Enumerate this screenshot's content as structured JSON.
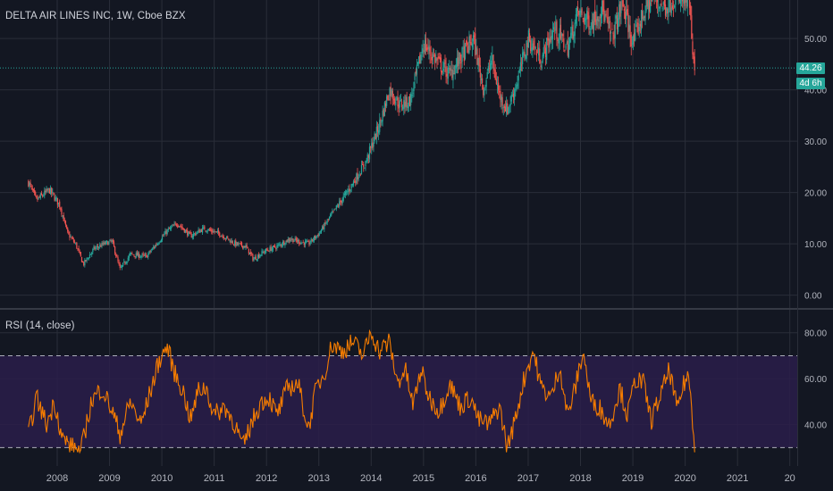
{
  "price_chart": {
    "title": "DELTA AIR LINES INC, 1W, Cboe BZX",
    "last_price_label": "44.26",
    "countdown_label": "4d 6h",
    "y_ticks": [
      "0.00",
      "10.00",
      "20.00",
      "30.00",
      "40.00",
      "50.00"
    ]
  },
  "rsi_chart": {
    "title": "RSI (14, close)",
    "y_ticks": [
      "40.00",
      "60.00",
      "80.00"
    ]
  },
  "x_ticks": [
    "2008",
    "2009",
    "2010",
    "2011",
    "2012",
    "2013",
    "2014",
    "2015",
    "2016",
    "2017",
    "2018",
    "2019",
    "2020",
    "2021",
    "20"
  ],
  "colors": {
    "background": "#131722",
    "grid": "#2a2e39",
    "up_candle": "#26a69a",
    "down_candle": "#ef5350",
    "rsi_line": "#f57c00",
    "rsi_band": "#2a1d4a",
    "price_line": "#26a69a"
  },
  "chart_data": [
    {
      "type": "candlestick",
      "title": "DELTA AIR LINES INC, 1W, Cboe BZX",
      "x_range": [
        2007.45,
        2020.18
      ],
      "ylim": [
        -2.5,
        57.5
      ],
      "last_price": 44.26,
      "anchors": [
        [
          2007.45,
          22.0
        ],
        [
          2007.6,
          18.5
        ],
        [
          2007.85,
          20.5
        ],
        [
          2008.05,
          17.5
        ],
        [
          2008.2,
          12.0
        ],
        [
          2008.35,
          10.0
        ],
        [
          2008.5,
          6.0
        ],
        [
          2008.7,
          9.0
        ],
        [
          2008.9,
          10.0
        ],
        [
          2009.05,
          10.5
        ],
        [
          2009.2,
          5.0
        ],
        [
          2009.4,
          8.0
        ],
        [
          2009.7,
          7.5
        ],
        [
          2009.9,
          10.0
        ],
        [
          2010.1,
          12.5
        ],
        [
          2010.3,
          14.0
        ],
        [
          2010.55,
          11.5
        ],
        [
          2010.8,
          13.0
        ],
        [
          2011.1,
          12.0
        ],
        [
          2011.4,
          10.0
        ],
        [
          2011.6,
          9.5
        ],
        [
          2011.75,
          7.0
        ],
        [
          2011.95,
          8.5
        ],
        [
          2012.2,
          9.5
        ],
        [
          2012.45,
          11.0
        ],
        [
          2012.6,
          10.5
        ],
        [
          2012.8,
          10.0
        ],
        [
          2013.0,
          12.0
        ],
        [
          2013.3,
          16.5
        ],
        [
          2013.6,
          21.0
        ],
        [
          2013.9,
          26.0
        ],
        [
          2014.15,
          33.0
        ],
        [
          2014.35,
          40.0
        ],
        [
          2014.55,
          37.0
        ],
        [
          2014.75,
          38.0
        ],
        [
          2015.0,
          49.0
        ],
        [
          2015.3,
          45.0
        ],
        [
          2015.5,
          43.0
        ],
        [
          2015.7,
          46.0
        ],
        [
          2015.95,
          50.0
        ],
        [
          2016.15,
          40.0
        ],
        [
          2016.3,
          46.0
        ],
        [
          2016.45,
          39.0
        ],
        [
          2016.6,
          36.0
        ],
        [
          2016.8,
          42.0
        ],
        [
          2017.0,
          50.0
        ],
        [
          2017.25,
          46.0
        ],
        [
          2017.5,
          52.0
        ],
        [
          2017.75,
          48.0
        ],
        [
          2017.95,
          55.0
        ],
        [
          2018.2,
          53.0
        ],
        [
          2018.4,
          56.0
        ],
        [
          2018.6,
          50.0
        ],
        [
          2018.8,
          57.0
        ],
        [
          2019.0,
          49.0
        ],
        [
          2019.2,
          55.0
        ],
        [
          2019.4,
          58.0
        ],
        [
          2019.6,
          56.0
        ],
        [
          2019.8,
          58.0
        ],
        [
          2020.0,
          57.0
        ],
        [
          2020.08,
          58.0
        ],
        [
          2020.12,
          50.0
        ],
        [
          2020.15,
          45.0
        ],
        [
          2020.18,
          44.26
        ]
      ],
      "y_ticks": [
        0,
        10,
        20,
        30,
        40,
        50
      ]
    },
    {
      "type": "line",
      "title": "RSI (14, close)",
      "x_range": [
        2007.45,
        2020.18
      ],
      "ylim": [
        22,
        90
      ],
      "band": [
        30,
        70
      ],
      "anchors": [
        [
          2007.45,
          35
        ],
        [
          2007.6,
          52
        ],
        [
          2007.8,
          40
        ],
        [
          2007.95,
          50
        ],
        [
          2008.1,
          34
        ],
        [
          2008.3,
          30
        ],
        [
          2008.45,
          28
        ],
        [
          2008.65,
          50
        ],
        [
          2008.85,
          56
        ],
        [
          2009.05,
          46
        ],
        [
          2009.2,
          36
        ],
        [
          2009.4,
          50
        ],
        [
          2009.6,
          40
        ],
        [
          2009.8,
          56
        ],
        [
          2009.95,
          68
        ],
        [
          2010.1,
          74
        ],
        [
          2010.25,
          62
        ],
        [
          2010.4,
          55
        ],
        [
          2010.55,
          42
        ],
        [
          2010.7,
          55
        ],
        [
          2010.85,
          56
        ],
        [
          2011.0,
          44
        ],
        [
          2011.2,
          48
        ],
        [
          2011.4,
          40
        ],
        [
          2011.55,
          30
        ],
        [
          2011.7,
          40
        ],
        [
          2011.9,
          50
        ],
        [
          2012.05,
          52
        ],
        [
          2012.2,
          44
        ],
        [
          2012.4,
          56
        ],
        [
          2012.6,
          58
        ],
        [
          2012.8,
          38
        ],
        [
          2012.95,
          56
        ],
        [
          2013.1,
          62
        ],
        [
          2013.25,
          75
        ],
        [
          2013.45,
          72
        ],
        [
          2013.65,
          76
        ],
        [
          2013.85,
          70
        ],
        [
          2014.0,
          81
        ],
        [
          2014.15,
          72
        ],
        [
          2014.35,
          76
        ],
        [
          2014.5,
          58
        ],
        [
          2014.65,
          64
        ],
        [
          2014.8,
          48
        ],
        [
          2014.95,
          64
        ],
        [
          2015.1,
          52
        ],
        [
          2015.3,
          46
        ],
        [
          2015.5,
          58
        ],
        [
          2015.7,
          48
        ],
        [
          2015.9,
          52
        ],
        [
          2016.05,
          42
        ],
        [
          2016.25,
          40
        ],
        [
          2016.45,
          48
        ],
        [
          2016.6,
          30
        ],
        [
          2016.75,
          42
        ],
        [
          2016.9,
          58
        ],
        [
          2017.0,
          66
        ],
        [
          2017.1,
          72
        ],
        [
          2017.25,
          56
        ],
        [
          2017.45,
          52
        ],
        [
          2017.6,
          66
        ],
        [
          2017.75,
          44
        ],
        [
          2017.9,
          56
        ],
        [
          2018.05,
          72
        ],
        [
          2018.2,
          50
        ],
        [
          2018.35,
          48
        ],
        [
          2018.55,
          40
        ],
        [
          2018.75,
          56
        ],
        [
          2018.9,
          44
        ],
        [
          2019.05,
          60
        ],
        [
          2019.2,
          58
        ],
        [
          2019.35,
          42
        ],
        [
          2019.55,
          54
        ],
        [
          2019.7,
          64
        ],
        [
          2019.85,
          46
        ],
        [
          2019.95,
          56
        ],
        [
          2020.05,
          62
        ],
        [
          2020.12,
          50
        ],
        [
          2020.18,
          30
        ]
      ],
      "y_ticks": [
        40,
        60,
        80
      ]
    }
  ]
}
